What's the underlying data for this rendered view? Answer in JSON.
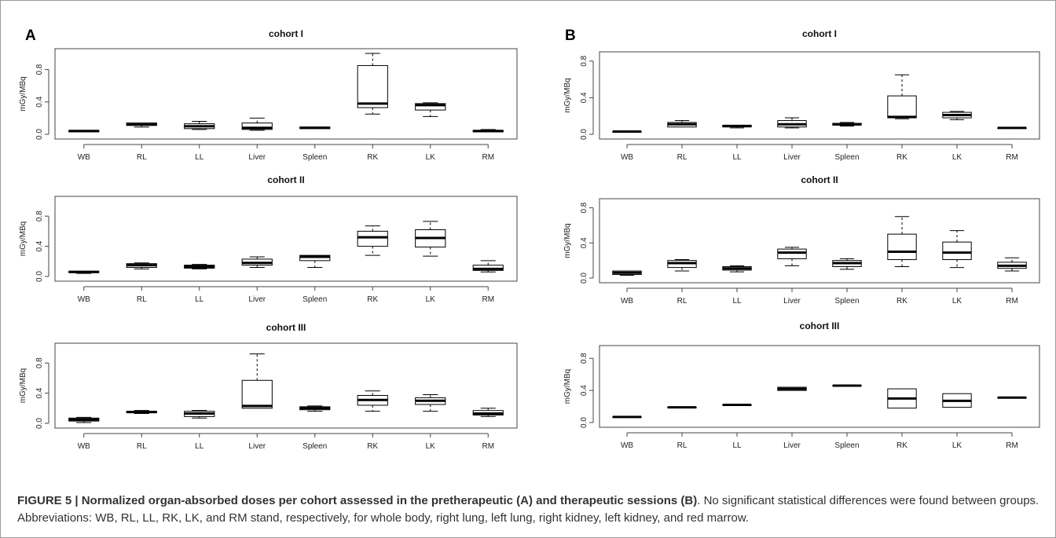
{
  "caption": {
    "bold": "FIGURE 5 | Normalized organ-absorbed doses per cohort assessed in the pretherapeutic (A) and therapeutic sessions (B)",
    "rest": ". No significant statistical differences were found between groups. Abbreviations: WB, RL, LL, RK, LK, and RM stand, respectively, for whole body, right lung, left lung, right kidney, left kidney, and red marrow."
  },
  "colors": {
    "box_stroke": "#000000",
    "axis": "#444444",
    "frame": "#9a9a9a"
  },
  "chart_data": [
    {
      "type": "box",
      "panel": "A",
      "title": "cohort I",
      "ylabel": "mGy/MBq",
      "ylim": [
        0,
        1.0
      ],
      "yticks": [
        "0.0",
        "0.4",
        "0.8"
      ],
      "categories": [
        "WB",
        "RL",
        "LL",
        "Liver",
        "Spleen",
        "RK",
        "LK",
        "RM"
      ],
      "boxes": [
        {
          "min": 0.03,
          "q1": 0.03,
          "median": 0.04,
          "q3": 0.05,
          "max": 0.05
        },
        {
          "min": 0.09,
          "q1": 0.11,
          "median": 0.12,
          "q3": 0.14,
          "max": 0.14
        },
        {
          "min": 0.06,
          "q1": 0.07,
          "median": 0.1,
          "q3": 0.13,
          "max": 0.16
        },
        {
          "min": 0.05,
          "q1": 0.06,
          "median": 0.08,
          "q3": 0.14,
          "max": 0.2
        },
        {
          "min": 0.07,
          "q1": 0.07,
          "median": 0.08,
          "q3": 0.09,
          "max": 0.09
        },
        {
          "min": 0.25,
          "q1": 0.33,
          "median": 0.38,
          "q3": 0.85,
          "max": 1.0
        },
        {
          "min": 0.22,
          "q1": 0.3,
          "median": 0.36,
          "q3": 0.38,
          "max": 0.39
        },
        {
          "min": 0.03,
          "q1": 0.03,
          "median": 0.04,
          "q3": 0.05,
          "max": 0.06
        }
      ]
    },
    {
      "type": "box",
      "panel": "A",
      "title": "cohort II",
      "ylabel": "mGy/MBq",
      "ylim": [
        0,
        1.0
      ],
      "yticks": [
        "0.0",
        "0.4",
        "0.8"
      ],
      "categories": [
        "WB",
        "RL",
        "LL",
        "Liver",
        "Spleen",
        "RK",
        "LK",
        "RM"
      ],
      "boxes": [
        {
          "min": 0.04,
          "q1": 0.05,
          "median": 0.06,
          "q3": 0.07,
          "max": 0.07
        },
        {
          "min": 0.1,
          "q1": 0.12,
          "median": 0.15,
          "q3": 0.17,
          "max": 0.18
        },
        {
          "min": 0.1,
          "q1": 0.11,
          "median": 0.13,
          "q3": 0.15,
          "max": 0.16
        },
        {
          "min": 0.12,
          "q1": 0.15,
          "median": 0.18,
          "q3": 0.23,
          "max": 0.26
        },
        {
          "min": 0.12,
          "q1": 0.21,
          "median": 0.26,
          "q3": 0.28,
          "max": 0.28
        },
        {
          "min": 0.28,
          "q1": 0.4,
          "median": 0.52,
          "q3": 0.6,
          "max": 0.67
        },
        {
          "min": 0.27,
          "q1": 0.39,
          "median": 0.51,
          "q3": 0.62,
          "max": 0.73
        },
        {
          "min": 0.06,
          "q1": 0.08,
          "median": 0.1,
          "q3": 0.15,
          "max": 0.21
        }
      ]
    },
    {
      "type": "box",
      "panel": "A",
      "title": "cohort III",
      "ylabel": "mGy/MBq",
      "ylim": [
        0,
        1.0
      ],
      "yticks": [
        "0.0",
        "0.4",
        "0.8"
      ],
      "categories": [
        "WB",
        "RL",
        "LL",
        "Liver",
        "Spleen",
        "RK",
        "LK",
        "RM"
      ],
      "boxes": [
        {
          "min": 0.01,
          "q1": 0.03,
          "median": 0.05,
          "q3": 0.07,
          "max": 0.08
        },
        {
          "min": 0.13,
          "q1": 0.14,
          "median": 0.15,
          "q3": 0.16,
          "max": 0.17
        },
        {
          "min": 0.07,
          "q1": 0.09,
          "median": 0.13,
          "q3": 0.16,
          "max": 0.17
        },
        {
          "min": 0.2,
          "q1": 0.2,
          "median": 0.23,
          "q3": 0.57,
          "max": 0.92
        },
        {
          "min": 0.16,
          "q1": 0.18,
          "median": 0.2,
          "q3": 0.22,
          "max": 0.23
        },
        {
          "min": 0.16,
          "q1": 0.24,
          "median": 0.31,
          "q3": 0.37,
          "max": 0.43
        },
        {
          "min": 0.16,
          "q1": 0.25,
          "median": 0.3,
          "q3": 0.34,
          "max": 0.38
        },
        {
          "min": 0.09,
          "q1": 0.11,
          "median": 0.13,
          "q3": 0.17,
          "max": 0.2
        }
      ]
    },
    {
      "type": "box",
      "panel": "B",
      "title": "cohort I",
      "ylabel": "mGy/MBq",
      "ylim": [
        0,
        0.85
      ],
      "yticks": [
        "0.0",
        "0.4",
        "0.8"
      ],
      "categories": [
        "WB",
        "RL",
        "LL",
        "Liver",
        "Spleen",
        "RK",
        "LK",
        "RM"
      ],
      "boxes": [
        {
          "min": 0.03,
          "q1": 0.03,
          "median": 0.03,
          "q3": 0.03,
          "max": 0.03
        },
        {
          "min": 0.08,
          "q1": 0.08,
          "median": 0.11,
          "q3": 0.13,
          "max": 0.15
        },
        {
          "min": 0.07,
          "q1": 0.08,
          "median": 0.09,
          "q3": 0.1,
          "max": 0.1
        },
        {
          "min": 0.07,
          "q1": 0.08,
          "median": 0.11,
          "q3": 0.15,
          "max": 0.18
        },
        {
          "min": 0.09,
          "q1": 0.1,
          "median": 0.11,
          "q3": 0.12,
          "max": 0.13
        },
        {
          "min": 0.17,
          "q1": 0.18,
          "median": 0.19,
          "q3": 0.42,
          "max": 0.65
        },
        {
          "min": 0.16,
          "q1": 0.18,
          "median": 0.21,
          "q3": 0.24,
          "max": 0.25
        },
        {
          "min": 0.07,
          "q1": 0.07,
          "median": 0.07,
          "q3": 0.07,
          "max": 0.07
        }
      ]
    },
    {
      "type": "box",
      "panel": "B",
      "title": "cohort II",
      "ylabel": "mGy/MBq",
      "ylim": [
        0,
        0.85
      ],
      "yticks": [
        "0.0",
        "0.4",
        "0.8"
      ],
      "categories": [
        "WB",
        "RL",
        "LL",
        "Liver",
        "Spleen",
        "RK",
        "LK",
        "RM"
      ],
      "boxes": [
        {
          "min": 0.03,
          "q1": 0.04,
          "median": 0.06,
          "q3": 0.08,
          "max": 0.08
        },
        {
          "min": 0.08,
          "q1": 0.12,
          "median": 0.17,
          "q3": 0.2,
          "max": 0.21
        },
        {
          "min": 0.07,
          "q1": 0.09,
          "median": 0.11,
          "q3": 0.13,
          "max": 0.14
        },
        {
          "min": 0.14,
          "q1": 0.22,
          "median": 0.29,
          "q3": 0.33,
          "max": 0.35
        },
        {
          "min": 0.1,
          "q1": 0.13,
          "median": 0.17,
          "q3": 0.2,
          "max": 0.22
        },
        {
          "min": 0.13,
          "q1": 0.21,
          "median": 0.3,
          "q3": 0.5,
          "max": 0.7
        },
        {
          "min": 0.12,
          "q1": 0.21,
          "median": 0.29,
          "q3": 0.41,
          "max": 0.54
        },
        {
          "min": 0.08,
          "q1": 0.11,
          "median": 0.14,
          "q3": 0.18,
          "max": 0.23
        }
      ]
    },
    {
      "type": "box",
      "panel": "B",
      "title": "cohort III",
      "ylabel": "mGy/MBq",
      "ylim": [
        0,
        0.9
      ],
      "yticks": [
        "0.0",
        "0.4",
        "0.8"
      ],
      "categories": [
        "WB",
        "RL",
        "LL",
        "Liver",
        "Spleen",
        "RK",
        "LK",
        "RM"
      ],
      "boxes": [
        {
          "min": 0.07,
          "q1": 0.07,
          "median": 0.07,
          "q3": 0.07,
          "max": 0.07
        },
        {
          "min": 0.19,
          "q1": 0.19,
          "median": 0.19,
          "q3": 0.19,
          "max": 0.19
        },
        {
          "min": 0.22,
          "q1": 0.22,
          "median": 0.22,
          "q3": 0.22,
          "max": 0.22
        },
        {
          "min": 0.4,
          "q1": 0.4,
          "median": 0.42,
          "q3": 0.44,
          "max": 0.44
        },
        {
          "min": 0.46,
          "q1": 0.46,
          "median": 0.46,
          "q3": 0.46,
          "max": 0.46
        },
        {
          "min": 0.18,
          "q1": 0.18,
          "median": 0.3,
          "q3": 0.42,
          "max": 0.42
        },
        {
          "min": 0.19,
          "q1": 0.19,
          "median": 0.27,
          "q3": 0.36,
          "max": 0.36
        },
        {
          "min": 0.31,
          "q1": 0.31,
          "median": 0.31,
          "q3": 0.31,
          "max": 0.31
        }
      ]
    }
  ],
  "panel_letters": [
    "A",
    "B"
  ]
}
